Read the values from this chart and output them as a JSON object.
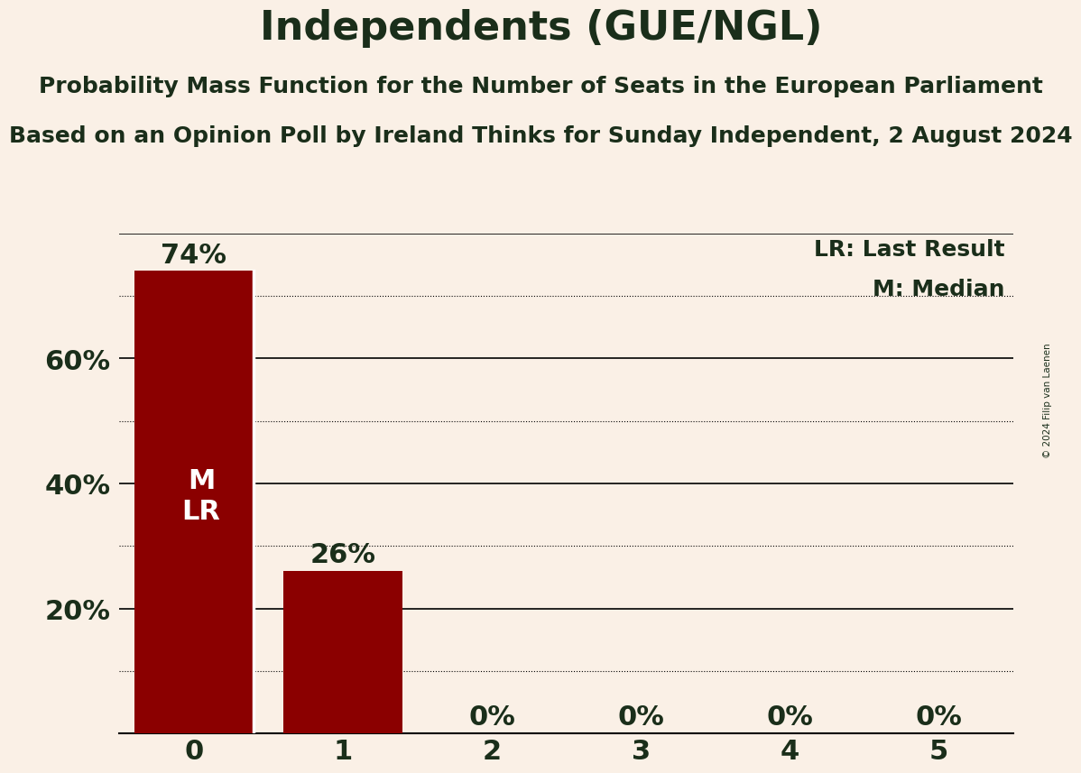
{
  "title": "Independents (GUE/NGL)",
  "subtitle1": "Probability Mass Function for the Number of Seats in the European Parliament",
  "subtitle2": "Based on an Opinion Poll by Ireland Thinks for Sunday Independent, 2 August 2024",
  "copyright": "© 2024 Filip van Laenen",
  "categories": [
    0,
    1,
    2,
    3,
    4,
    5
  ],
  "values": [
    0.74,
    0.26,
    0.0,
    0.0,
    0.0,
    0.0
  ],
  "bar_color": "#8B0000",
  "background_color": "#FAF0E6",
  "text_color": "#1a2e1a",
  "bar_label_color_inside": "#FFFFFF",
  "bar_label_color_outside": "#1a2e1a",
  "median": 0,
  "last_result": 0,
  "legend_lr": "LR: Last Result",
  "legend_m": "M: Median",
  "ylim": [
    0,
    0.8
  ],
  "yticks": [
    0.0,
    0.2,
    0.4,
    0.6,
    0.8
  ],
  "ytick_labels": [
    "",
    "20%",
    "40%",
    "60%",
    ""
  ],
  "solid_gridlines": [
    0.2,
    0.4,
    0.6,
    0.8
  ],
  "dotted_gridlines": [
    0.1,
    0.3,
    0.5,
    0.7
  ],
  "title_fontsize": 32,
  "subtitle_fontsize": 18,
  "bar_label_fontsize": 22,
  "axis_label_fontsize": 22,
  "legend_fontsize": 18,
  "mlr_fontsize": 22
}
